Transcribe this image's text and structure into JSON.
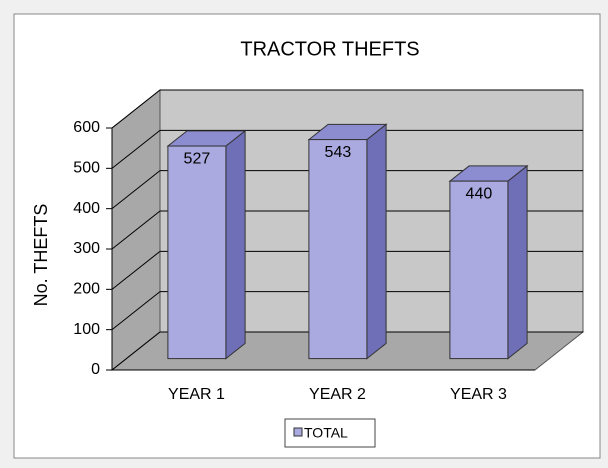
{
  "chart_data": {
    "type": "bar3d",
    "title": "TRACTOR THEFTS",
    "y_label": "No. THEFTS",
    "categories": [
      "YEAR 1",
      "YEAR 2",
      "YEAR 3"
    ],
    "series": [
      {
        "name": "TOTAL",
        "color": "#aaaae0",
        "values": [
          527,
          543,
          440
        ]
      }
    ],
    "ylim": [
      0,
      600
    ],
    "yticks": [
      0,
      100,
      200,
      300,
      400,
      500,
      600
    ],
    "grid": true
  }
}
